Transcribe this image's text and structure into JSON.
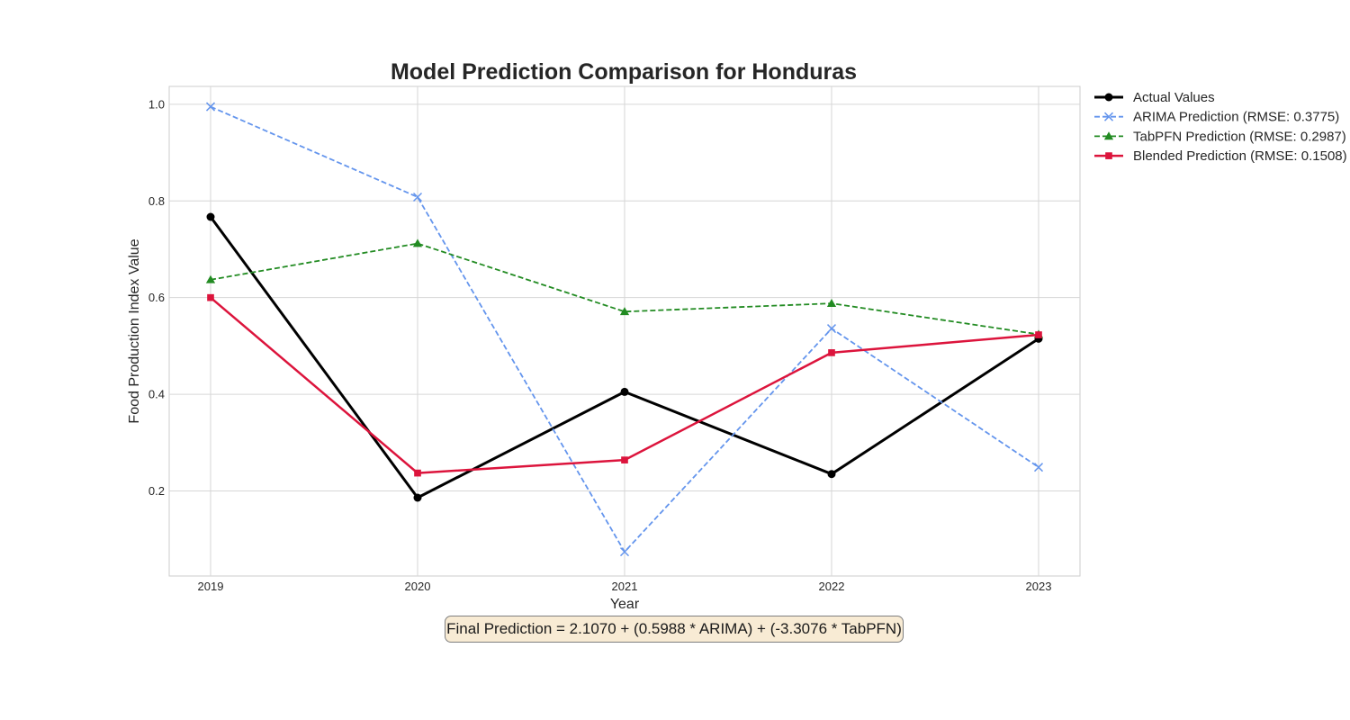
{
  "chart_data": {
    "type": "line",
    "title": "Model Prediction Comparison for Honduras",
    "xlabel": "Year",
    "ylabel": "Food Production Index Value",
    "categories": [
      "2019",
      "2020",
      "2021",
      "2022",
      "2023"
    ],
    "yticks": [
      "0.2",
      "0.4",
      "0.6",
      "0.8",
      "1.0"
    ],
    "ytick_values": [
      0.2,
      0.4,
      0.6,
      0.8,
      1.0
    ],
    "ylim": [
      0.024,
      1.037
    ],
    "grid": true,
    "legend_position": "outside-top-right",
    "series": [
      {
        "name": "Actual Values",
        "values": [
          0.767,
          0.186,
          0.405,
          0.235,
          0.515
        ],
        "color": "#000000",
        "linestyle": "solid",
        "marker": "circle"
      },
      {
        "name": "ARIMA Prediction (RMSE: 0.3775)",
        "values": [
          0.995,
          0.808,
          0.074,
          0.536,
          0.249
        ],
        "color": "#6495ed",
        "linestyle": "dashed",
        "marker": "x"
      },
      {
        "name": "TabPFN Prediction (RMSE: 0.2987)",
        "values": [
          0.637,
          0.712,
          0.571,
          0.588,
          0.524
        ],
        "color": "#228b22",
        "linestyle": "dashed",
        "marker": "triangle"
      },
      {
        "name": "Blended Prediction (RMSE: 0.1508)",
        "values": [
          0.6,
          0.237,
          0.264,
          0.486,
          0.523
        ],
        "color": "#dc143c",
        "linestyle": "solid",
        "marker": "square"
      }
    ],
    "annotation": "Final Prediction = 2.1070 + (0.5988 * ARIMA) + (-3.3076 * TabPFN)"
  }
}
